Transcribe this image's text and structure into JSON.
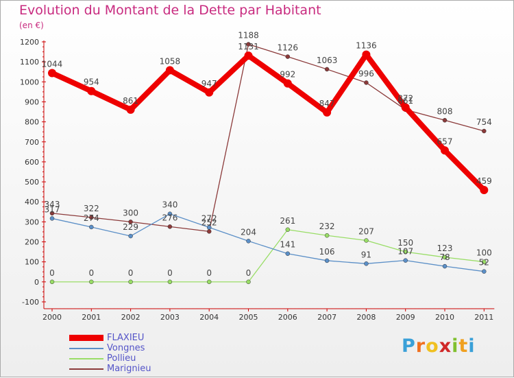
{
  "header": {
    "title": "Evolution du Montant de la Dette par Habitant",
    "subtitle": "(en €)"
  },
  "colors": {
    "axis": "#cc0000",
    "title": "#c82a7f",
    "legend_text": "#5454c8"
  },
  "logo": {
    "text": "Proxiti",
    "letter_colors": [
      "#3aa0d8",
      "#f07020",
      "#f0c020",
      "#d02828",
      "#80c030",
      "#f0a020",
      "#3aa0d8"
    ]
  },
  "chart_data": {
    "type": "line",
    "categories": [
      "2000",
      "2001",
      "2002",
      "2003",
      "2004",
      "2005",
      "2006",
      "2007",
      "2008",
      "2009",
      "2010",
      "2011"
    ],
    "ylim": [
      -100,
      1200
    ],
    "yticks": [
      "-100",
      "0",
      "100",
      "200",
      "300",
      "400",
      "500",
      "600",
      "700",
      "800",
      "900",
      "1000",
      "1100",
      "1200"
    ],
    "grid": false,
    "legend_placement": "bottom-left",
    "series": [
      {
        "name": "FLAXIEU",
        "color": "#ee0000",
        "values": [
          1044,
          954,
          861,
          1058,
          947,
          1131,
          992,
          847,
          1136,
          872,
          657,
          459
        ],
        "labels": [
          "1044",
          "954",
          "861",
          "1058",
          "947",
          "1131",
          "992",
          "847",
          "1136",
          "872",
          "657",
          "459"
        ]
      },
      {
        "name": "Vongnes",
        "color": "#5b8fc7",
        "values": [
          317,
          274,
          229,
          340,
          272,
          204,
          141,
          106,
          91,
          107,
          78,
          52
        ],
        "labels": [
          "317",
          "274",
          "229",
          "340",
          "272",
          "204",
          "141",
          "106",
          "91",
          "107",
          "78",
          "52"
        ]
      },
      {
        "name": "Pollieu",
        "color": "#99dd66",
        "values": [
          0,
          0,
          0,
          0,
          0,
          0,
          261,
          232,
          207,
          150,
          123,
          100
        ],
        "labels": [
          "0",
          "0",
          "0",
          "0",
          "0",
          "0",
          "261",
          "232",
          "207",
          "150",
          "123",
          "100"
        ]
      },
      {
        "name": "Marignieu",
        "color": "#8b3a3a",
        "values": [
          343,
          322,
          300,
          276,
          252,
          1188,
          1126,
          1063,
          996,
          861,
          808,
          754
        ],
        "labels": [
          "343",
          "322",
          "300",
          "276",
          "252",
          "1188",
          "1126",
          "1063",
          "996",
          "861",
          "808",
          "754"
        ]
      }
    ]
  }
}
